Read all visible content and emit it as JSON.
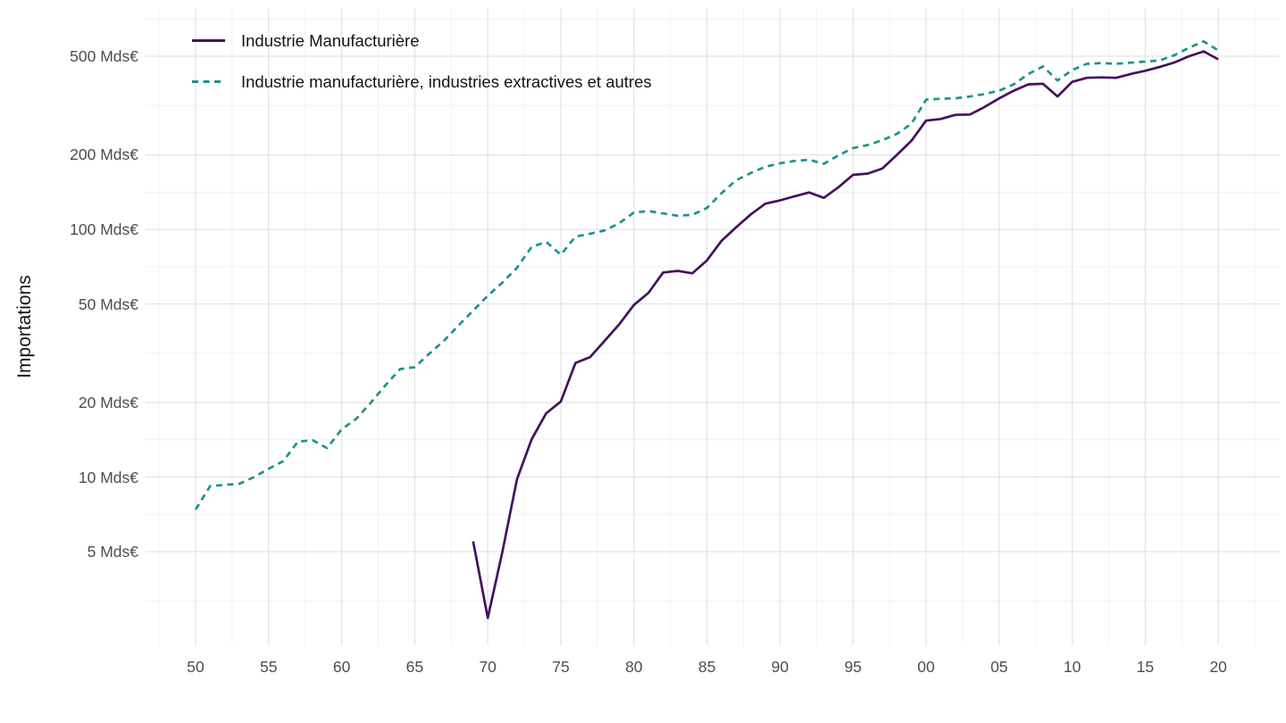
{
  "chart_data": {
    "type": "line",
    "title": "",
    "ylabel": "Importations",
    "xlabel": "",
    "y_scale": "log10",
    "grid": "on",
    "legend_position": "top-left-inside",
    "unit": "Mds€",
    "y_ticks": [
      {
        "value": 500,
        "label": "500 Mds€"
      },
      {
        "value": 200,
        "label": "200 Mds€"
      },
      {
        "value": 100,
        "label": "100 Mds€"
      },
      {
        "value": 50,
        "label": "50 Mds€"
      },
      {
        "value": 20,
        "label": "20 Mds€"
      },
      {
        "value": 10,
        "label": "10 Mds€"
      },
      {
        "value": 5,
        "label": "5 Mds€"
      }
    ],
    "y_minor_gridlines": [
      3.162,
      7.071,
      14.14,
      31.62,
      70.71,
      141.4,
      316.2,
      707.1
    ],
    "x_ticks": [
      {
        "year": 1950,
        "label": "50"
      },
      {
        "year": 1955,
        "label": "55"
      },
      {
        "year": 1960,
        "label": "60"
      },
      {
        "year": 1965,
        "label": "65"
      },
      {
        "year": 1970,
        "label": "70"
      },
      {
        "year": 1975,
        "label": "75"
      },
      {
        "year": 1980,
        "label": "80"
      },
      {
        "year": 1985,
        "label": "85"
      },
      {
        "year": 1990,
        "label": "90"
      },
      {
        "year": 1995,
        "label": "95"
      },
      {
        "year": 2000,
        "label": "00"
      },
      {
        "year": 2005,
        "label": "05"
      },
      {
        "year": 2010,
        "label": "10"
      },
      {
        "year": 2015,
        "label": "15"
      },
      {
        "year": 2020,
        "label": "20"
      }
    ],
    "x_minor_gridlines": [
      1947.5,
      1952.5,
      1957.5,
      1962.5,
      1967.5,
      1972.5,
      1977.5,
      1982.5,
      1987.5,
      1992.5,
      1997.5,
      2002.5,
      2007.5,
      2012.5,
      2017.5,
      2022.5
    ],
    "series": [
      {
        "name": "Industrie Manufacturière",
        "color": "#45105f",
        "line_style": "solid",
        "start_year": 1969,
        "values": [
          5.5,
          2.7,
          5.0,
          9.8,
          14.2,
          18.1,
          20.2,
          28.9,
          30.5,
          35.5,
          41.4,
          49.5,
          55.5,
          67,
          68,
          66.5,
          75,
          90,
          102,
          115,
          127,
          131,
          136,
          141,
          134,
          148,
          166,
          168,
          176,
          200,
          228,
          275,
          279,
          290,
          291,
          312,
          338,
          363,
          385,
          387,
          344,
          394,
          409,
          411,
          409,
          424,
          437,
          453,
          472,
          500,
          523,
          486
        ]
      },
      {
        "name": "Industrie manufacturière, industries extractives et autres",
        "color": "#21918c",
        "line_style": "dashed",
        "start_year": 1950,
        "values": [
          7.4,
          9.2,
          9.3,
          9.4,
          10.0,
          10.8,
          11.6,
          13.9,
          14.1,
          13.1,
          15.6,
          17.2,
          20.0,
          23.5,
          27.3,
          27.8,
          31.5,
          35.5,
          41,
          47,
          54,
          61,
          70,
          85,
          89,
          79,
          93.5,
          96,
          99,
          106,
          117,
          118.5,
          116,
          113.5,
          114.5,
          122,
          140,
          158,
          169,
          179,
          185,
          189,
          191,
          184,
          199,
          213,
          219,
          229,
          243,
          267,
          334,
          337,
          338,
          344,
          352,
          363,
          385,
          424,
          455,
          399,
          440,
          466,
          469,
          466,
          471,
          476,
          481,
          505,
          541,
          574,
          528
        ]
      }
    ]
  },
  "legend": {
    "items": [
      {
        "label": "Industrie Manufacturière"
      },
      {
        "label": "Industrie manufacturière, industries extractives et autres"
      }
    ]
  }
}
